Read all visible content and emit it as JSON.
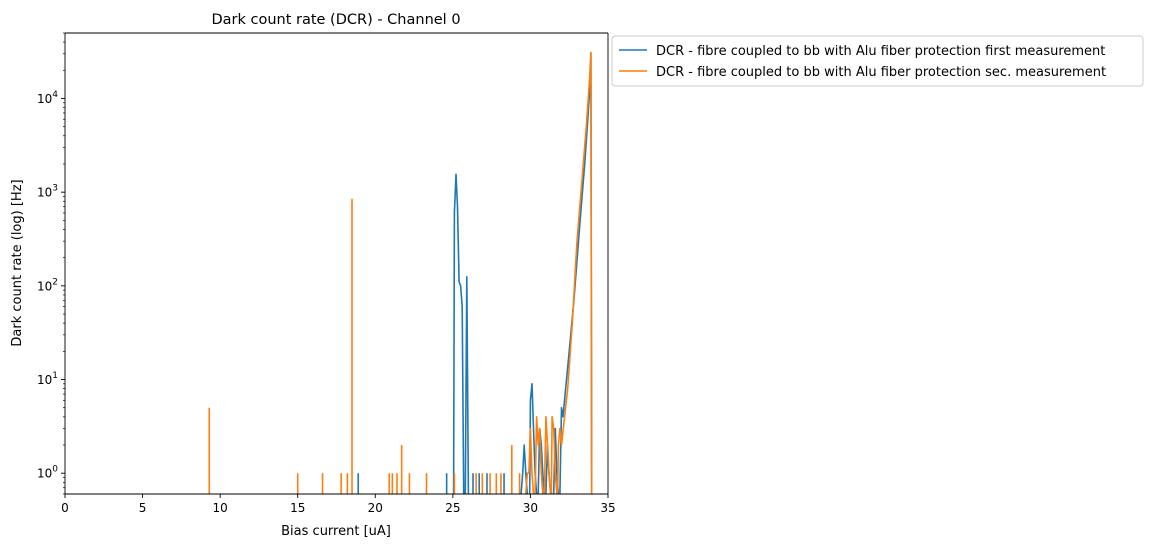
{
  "chart_data": {
    "type": "line",
    "title": "Dark count rate (DCR) - Channel 0",
    "xlabel": "Bias current [uA]",
    "ylabel": "Dark count rate (log) [Hz]",
    "xlim": [
      0,
      35
    ],
    "ylim": [
      0.6,
      50000
    ],
    "yscale": "log",
    "grid": false,
    "legend_position": "outside-top-right",
    "x_ticks": [
      0,
      5,
      10,
      15,
      20,
      25,
      30,
      35
    ],
    "x_tick_labels": [
      "0",
      "5",
      "10",
      "15",
      "20",
      "25",
      "30",
      "35"
    ],
    "y_ticks": [
      1,
      10,
      100,
      1000,
      10000
    ],
    "y_tick_labels": [
      {
        "base": "10",
        "exp": "0"
      },
      {
        "base": "10",
        "exp": "1"
      },
      {
        "base": "10",
        "exp": "2"
      },
      {
        "base": "10",
        "exp": "3"
      },
      {
        "base": "10",
        "exp": "4"
      }
    ],
    "series": [
      {
        "name": "DCR - fibre coupled to bb with Alu fiber protection first measurement",
        "color": "#1f77b4",
        "spikes": [
          [
            18.9,
            1
          ],
          [
            24.6,
            1
          ],
          [
            26.3,
            1
          ],
          [
            26.7,
            1
          ],
          [
            27.2,
            1
          ],
          [
            28.3,
            1
          ]
        ],
        "segments": [
          [
            [
              25.05,
              0
            ],
            [
              25.1,
              600
            ],
            [
              25.2,
              1550
            ],
            [
              25.3,
              700
            ],
            [
              25.4,
              110
            ],
            [
              25.5,
              100
            ],
            [
              25.6,
              60
            ],
            [
              25.7,
              0
            ]
          ],
          [
            [
              25.8,
              0
            ],
            [
              25.9,
              125
            ],
            [
              26.0,
              0
            ]
          ],
          [
            [
              29.4,
              0
            ],
            [
              29.5,
              1
            ],
            [
              29.6,
              2
            ],
            [
              29.7,
              1
            ],
            [
              29.8,
              0
            ]
          ],
          [
            [
              29.95,
              0
            ],
            [
              30.0,
              6
            ],
            [
              30.1,
              9
            ],
            [
              30.2,
              3
            ],
            [
              30.3,
              1
            ],
            [
              30.4,
              0
            ]
          ],
          [
            [
              30.5,
              0
            ],
            [
              30.6,
              3
            ],
            [
              30.7,
              2
            ],
            [
              30.8,
              1
            ],
            [
              30.9,
              0
            ]
          ],
          [
            [
              31.0,
              0
            ],
            [
              31.1,
              2
            ],
            [
              31.2,
              1
            ],
            [
              31.3,
              0
            ]
          ],
          [
            [
              31.5,
              0
            ],
            [
              31.6,
              3
            ],
            [
              31.7,
              1
            ],
            [
              31.8,
              0
            ]
          ],
          [
            [
              31.9,
              0
            ],
            [
              32.0,
              5
            ],
            [
              32.1,
              4
            ],
            [
              32.3,
              9
            ],
            [
              32.5,
              20
            ],
            [
              32.8,
              70
            ],
            [
              33.2,
              500
            ],
            [
              33.5,
              2000
            ],
            [
              33.7,
              6000
            ],
            [
              33.85,
              15000
            ],
            [
              33.9,
              30000
            ],
            [
              33.95,
              0
            ]
          ]
        ]
      },
      {
        "name": "DCR - fibre coupled to bb with Alu fiber protection sec. measurement",
        "color": "#ff7f0e",
        "spikes": [
          [
            9.3,
            5
          ],
          [
            15.0,
            1
          ],
          [
            16.6,
            1
          ],
          [
            17.8,
            1
          ],
          [
            18.2,
            1
          ],
          [
            18.5,
            850
          ],
          [
            20.9,
            1
          ],
          [
            21.1,
            1
          ],
          [
            21.4,
            1
          ],
          [
            21.7,
            2
          ],
          [
            22.2,
            1
          ],
          [
            23.3,
            1
          ],
          [
            25.1,
            1
          ],
          [
            26.5,
            1
          ],
          [
            26.9,
            1
          ],
          [
            27.4,
            1
          ],
          [
            27.8,
            1
          ],
          [
            28.1,
            1
          ],
          [
            28.8,
            2
          ],
          [
            29.3,
            1
          ]
        ],
        "segments": [
          [
            [
              29.7,
              0
            ],
            [
              29.8,
              1
            ],
            [
              29.9,
              1
            ],
            [
              30.0,
              3
            ],
            [
              30.1,
              1
            ],
            [
              30.2,
              0
            ]
          ],
          [
            [
              30.3,
              0
            ],
            [
              30.4,
              4
            ],
            [
              30.5,
              2
            ],
            [
              30.6,
              3
            ],
            [
              30.7,
              1
            ],
            [
              30.8,
              0
            ]
          ],
          [
            [
              30.9,
              0
            ],
            [
              31.0,
              4
            ],
            [
              31.1,
              2
            ],
            [
              31.2,
              1
            ],
            [
              31.3,
              0
            ]
          ],
          [
            [
              31.35,
              0
            ],
            [
              31.4,
              4
            ],
            [
              31.5,
              3
            ],
            [
              31.6,
              1
            ],
            [
              31.7,
              0
            ]
          ],
          [
            [
              31.75,
              0
            ],
            [
              31.8,
              2
            ],
            [
              31.9,
              3
            ],
            [
              32.0,
              2
            ],
            [
              32.2,
              4
            ],
            [
              32.4,
              8
            ],
            [
              32.7,
              40
            ],
            [
              33.0,
              300
            ],
            [
              33.3,
              1200
            ],
            [
              33.6,
              5000
            ],
            [
              33.8,
              15000
            ],
            [
              33.9,
              31000
            ],
            [
              33.95,
              0
            ]
          ]
        ]
      }
    ]
  }
}
